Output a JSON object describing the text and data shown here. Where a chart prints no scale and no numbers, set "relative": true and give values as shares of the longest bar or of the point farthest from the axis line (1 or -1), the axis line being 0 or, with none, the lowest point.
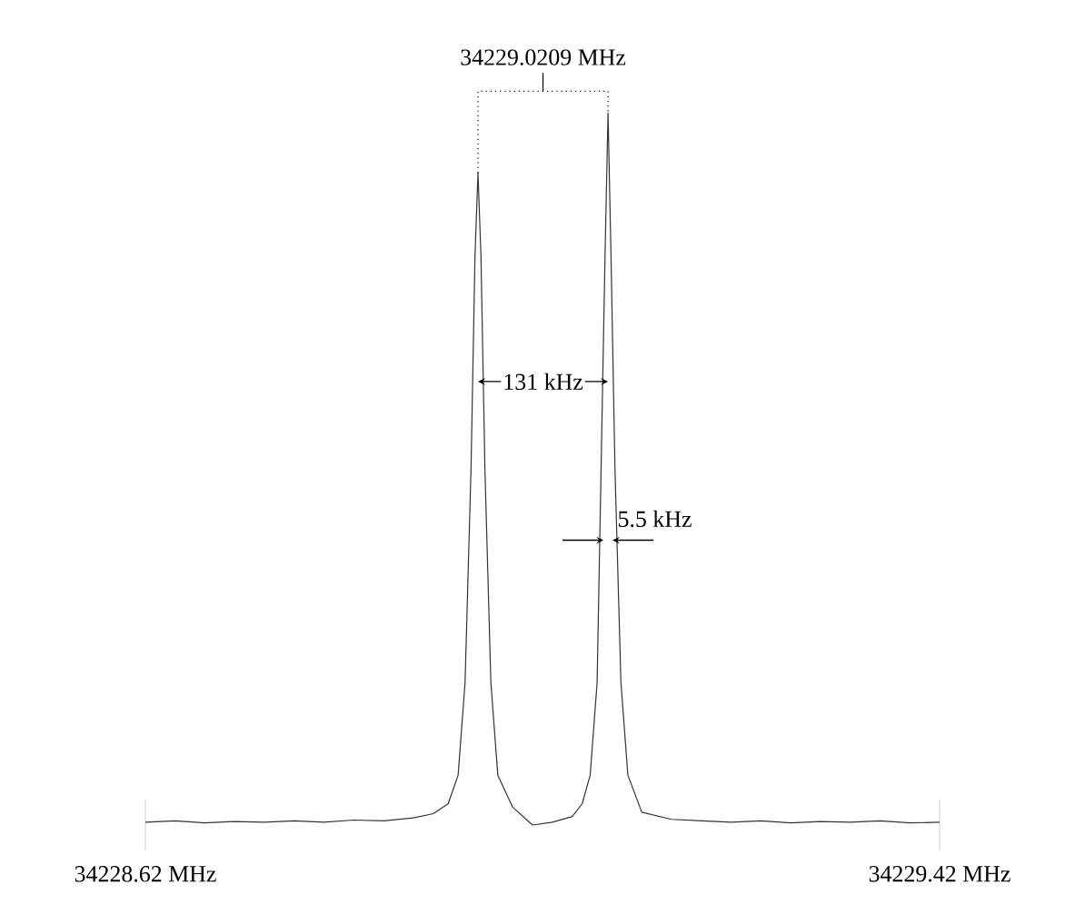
{
  "chart_data": {
    "type": "line",
    "relative": true,
    "color": "#333333",
    "marker": "none",
    "line_style": "solid",
    "x": [
      34228.62,
      34228.65,
      34228.68,
      34228.71,
      34228.74,
      34228.77,
      34228.8,
      34228.83,
      34228.86,
      34228.89,
      34228.91,
      34228.925,
      34228.935,
      34228.942,
      34228.948,
      34228.952,
      34228.955,
      34228.958,
      34228.962,
      34228.968,
      34228.975,
      34228.99,
      34229.01,
      34229.03,
      34229.05,
      34229.06,
      34229.068,
      34229.075,
      34229.079,
      34229.083,
      34229.086,
      34229.089,
      34229.093,
      34229.099,
      34229.106,
      34229.12,
      34229.15,
      34229.18,
      34229.21,
      34229.24,
      34229.27,
      34229.3,
      34229.33,
      34229.36,
      34229.39,
      34229.42
    ],
    "values": [
      0.004,
      0.006,
      0.003,
      0.005,
      0.004,
      0.006,
      0.004,
      0.007,
      0.006,
      0.01,
      0.016,
      0.03,
      0.07,
      0.2,
      0.5,
      0.8,
      0.916,
      0.8,
      0.5,
      0.2,
      0.07,
      0.025,
      0.0,
      0.004,
      0.012,
      0.03,
      0.07,
      0.2,
      0.5,
      0.8,
      1.0,
      0.8,
      0.5,
      0.2,
      0.07,
      0.018,
      0.008,
      0.006,
      0.004,
      0.006,
      0.003,
      0.005,
      0.004,
      0.006,
      0.003,
      0.004
    ],
    "xlim": [
      34228.62,
      34229.42
    ],
    "xticks": [
      {
        "value": 34228.62,
        "label": "34228.62  MHz"
      },
      {
        "value": 34229.42,
        "label": "34229.42  MHz"
      }
    ],
    "annotations": [
      "34229.0209  MHz",
      "131  kHz",
      {
        "text": "5.5  kHz",
        "x": 34229.086,
        "y": 0.4
      }
    ]
  }
}
